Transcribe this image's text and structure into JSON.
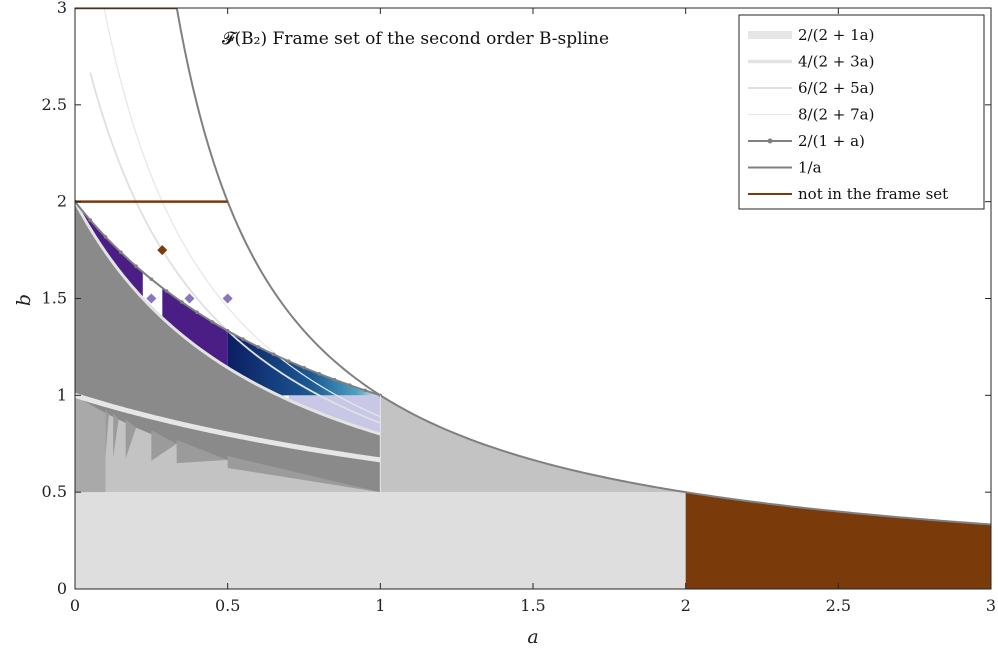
{
  "chart_data": {
    "type": "area",
    "title": "𝓕(B₂) Frame set of the second order B-spline",
    "xlabel": "a",
    "ylabel": "b",
    "xlim": [
      0,
      3
    ],
    "ylim": [
      0,
      3
    ],
    "xticks": [
      "0",
      "0.5",
      "1",
      "1.5",
      "2",
      "2.5",
      "3"
    ],
    "yticks": [
      "0",
      "0.5",
      "1",
      "1.5",
      "2",
      "2.5",
      "3"
    ],
    "grid": false,
    "legend_position": "top-right",
    "legend": [
      {
        "label": "2/(2 + 1a)",
        "style": "thick-light",
        "color": "#e6e6e6"
      },
      {
        "label": "4/(2 + 3a)",
        "style": "medium-light",
        "color": "#e3e3e3"
      },
      {
        "label": "6/(2 + 5a)",
        "style": "thin-light",
        "color": "#e0e0e0"
      },
      {
        "label": "8/(2 + 7a)",
        "style": "hair-light",
        "color": "#e6e6e6"
      },
      {
        "label": "2/(1 + a)",
        "style": "line-dot",
        "color": "#808080"
      },
      {
        "label": "1/a",
        "style": "line",
        "color": "#808080"
      },
      {
        "label": "not in the frame set",
        "style": "line",
        "color": "#7b3a0a"
      }
    ],
    "curves": {
      "one_over_a": {
        "x_range": [
          0.3333,
          3
        ],
        "color": "#808080"
      },
      "two_over_one_plus_a": {
        "x_range": [
          0,
          1
        ],
        "color": "#808080"
      },
      "two_over_two_plus_a": {
        "x_range": [
          0,
          3
        ],
        "color": "#e6e6e6"
      },
      "four_over_two_plus_3a": {
        "x_range": [
          0,
          1
        ],
        "color": "#e3e3e3"
      },
      "six_over_two_plus_5a": {
        "x_range": [
          0,
          1
        ],
        "color": "#e0e0e0"
      },
      "eight_over_two_plus_7a": {
        "x_range": [
          0,
          1
        ],
        "color": "#e6e6e6"
      }
    },
    "not_in_frame_set": {
      "color": "#7b3a0a",
      "lines": [
        {
          "x": [
            0,
            0.3333
          ],
          "y": 3
        },
        {
          "x": [
            0,
            0.5
          ],
          "y": 2
        }
      ],
      "region_under_one_over_a": {
        "x": [
          2,
          3
        ]
      },
      "points": [
        {
          "x": 0.2857,
          "y": 1.75
        }
      ]
    },
    "regions": {
      "light_base": {
        "x": [
          0,
          2
        ],
        "y": [
          0,
          0.5
        ],
        "color": "#dedede"
      },
      "mid_gray_under_one_over_a": {
        "x": [
          1,
          2
        ],
        "color": "#c3c3c3"
      },
      "dark_gray_band": {
        "x": [
          0,
          1
        ],
        "color": "#8a8a8a"
      },
      "purple_regions": [
        {
          "x": [
            0.0,
            0.222
          ],
          "color": "#4b1e86"
        },
        {
          "x": [
            0.286,
            0.5
          ],
          "color": "#4b1e86"
        }
      ],
      "navy_region": {
        "x": [
          0.5,
          1.0
        ],
        "color": "#0c1d63"
      }
    },
    "diamond_points": [
      {
        "x": 0.25,
        "y": 1.5,
        "color": "#8c75c0"
      },
      {
        "x": 0.375,
        "y": 1.5,
        "color": "#8c75c0"
      },
      {
        "x": 0.5,
        "y": 1.5,
        "color": "#8c75c0"
      }
    ]
  }
}
